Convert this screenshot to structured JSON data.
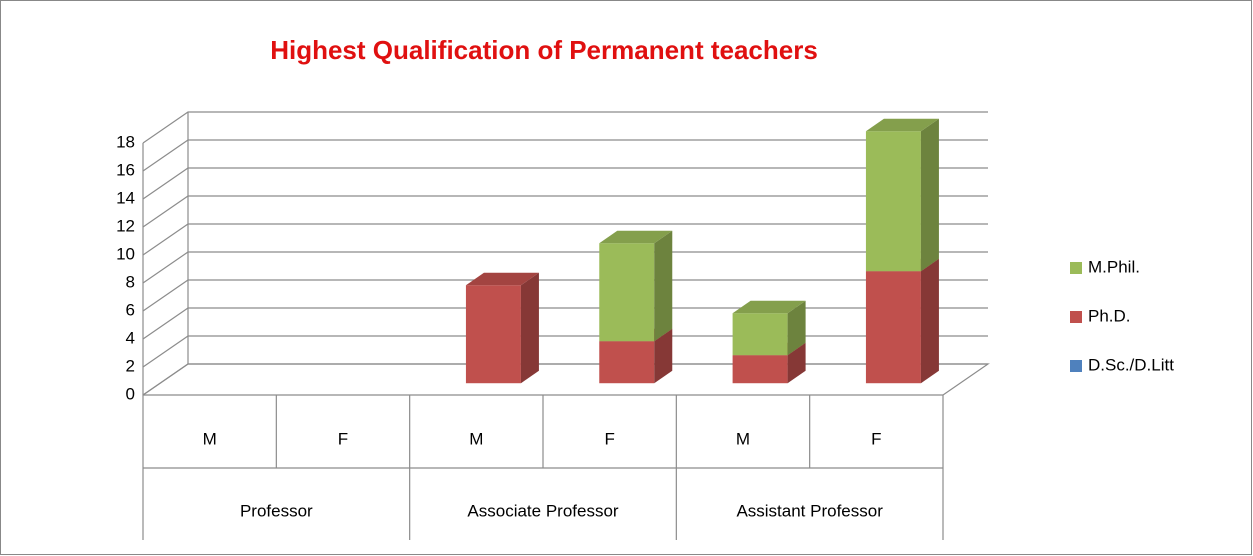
{
  "chart_data": {
    "type": "bar3d-stacked",
    "title": "Highest Qualification of Permanent teachers",
    "categories": [
      "M",
      "F",
      "M",
      "F",
      "M",
      "F"
    ],
    "groups": [
      "Professor",
      "Associate Professor",
      "Assistant Professor"
    ],
    "series": [
      {
        "name": "D.Sc./D.Litt",
        "color": "#4f81bd",
        "values": [
          0,
          0,
          0,
          0,
          0,
          0
        ]
      },
      {
        "name": "Ph.D.",
        "color": "#c0504d",
        "values": [
          0,
          0,
          7,
          3,
          2,
          8
        ]
      },
      {
        "name": "M.Phil.",
        "color": "#9bbb59",
        "values": [
          0,
          0,
          0,
          7,
          3,
          10
        ]
      }
    ],
    "ylim": [
      0,
      18
    ],
    "yticks": [
      0,
      2,
      4,
      6,
      8,
      10,
      12,
      14,
      16,
      18
    ],
    "grid": true
  }
}
